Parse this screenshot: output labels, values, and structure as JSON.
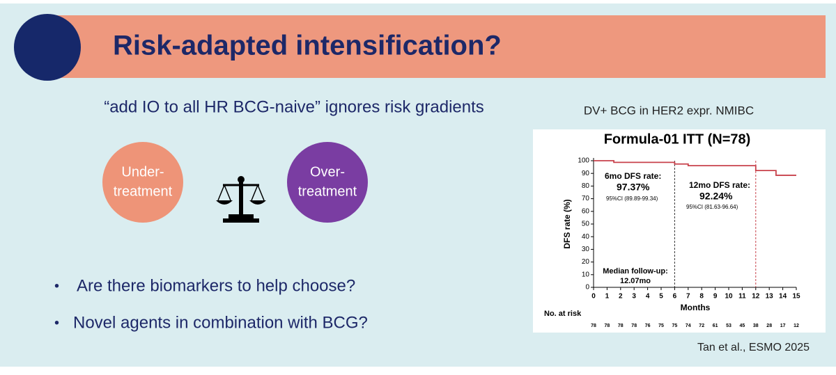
{
  "slide": {
    "title": "Risk-adapted intensification?",
    "subtitle": "“add IO to all HR BCG-naive” ignores risk gradients",
    "left_circle": [
      "Under-",
      "treatment"
    ],
    "right_circle": [
      "Over-",
      "treatment"
    ],
    "bullets": [
      "Are there biomarkers to help choose?",
      "Novel agents in combination with BCG?"
    ],
    "chart_caption": "DV+ BCG in HER2 expr. NMIBC",
    "source": "Tan et al., ESMO 2025"
  },
  "chart_data": {
    "type": "line",
    "step": true,
    "title": "Formula-01 ITT (N=78)",
    "x_label": "Months",
    "y_label": "DFS rate (%)",
    "x": [
      0,
      1.5,
      6,
      7,
      12,
      13.5,
      15
    ],
    "series": [
      {
        "name": "ITT",
        "color": "#c8414b",
        "values": [
          100,
          98.7,
          97.37,
          96.1,
          92.24,
          88.5,
          88.5
        ]
      }
    ],
    "xlim": [
      0,
      15
    ],
    "xticks": [
      0,
      1,
      2,
      3,
      4,
      5,
      6,
      7,
      8,
      9,
      10,
      11,
      12,
      13,
      14,
      15
    ],
    "ylim": [
      0,
      100
    ],
    "yticks": [
      0,
      10,
      20,
      30,
      40,
      50,
      60,
      70,
      80,
      90,
      100
    ],
    "reference_lines": [
      {
        "x": 6,
        "color": "#333333"
      },
      {
        "x": 12,
        "color": "#c8414b"
      }
    ],
    "annotations": [
      "6mo DFS rate:",
      "97.37%",
      "95%CI (89.89-99.34)",
      "12mo DFS rate:",
      "92.24%",
      "95%CI (81.63-96.64)",
      "Median follow-up:",
      "12.07mo"
    ],
    "risk_table": {
      "label": "No. at risk",
      "values": [
        78,
        78,
        78,
        78,
        76,
        75,
        75,
        74,
        72,
        61,
        53,
        45,
        38,
        28,
        17,
        12
      ]
    }
  }
}
